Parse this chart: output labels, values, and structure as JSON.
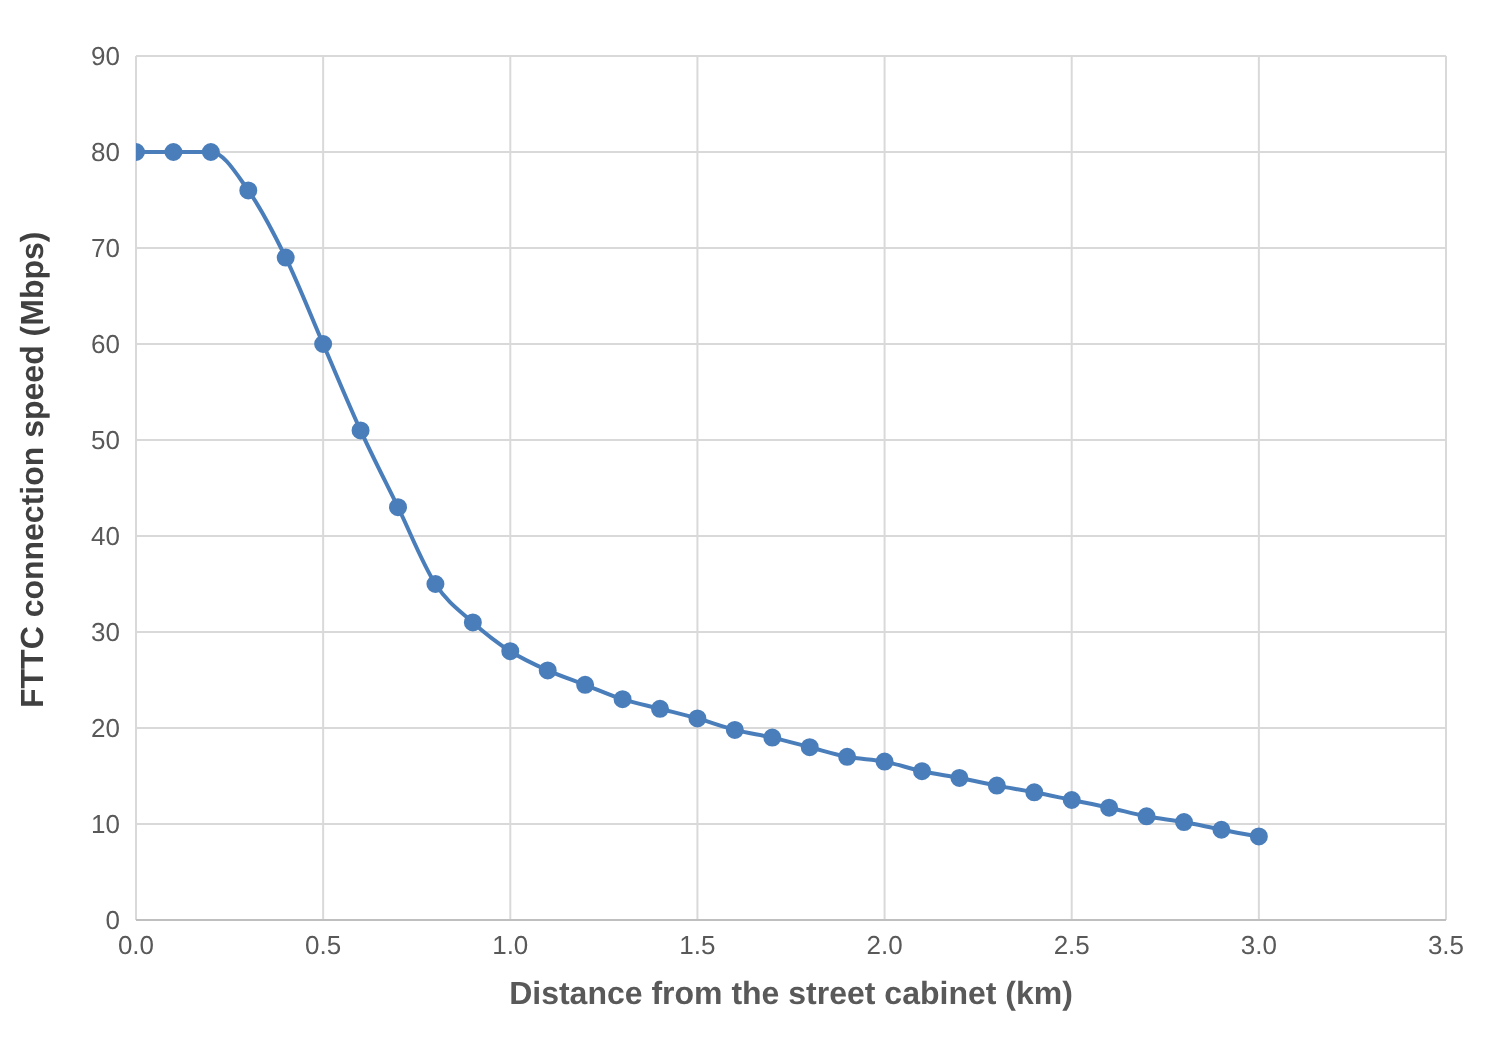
{
  "chart_data": {
    "type": "line",
    "xlabel": "Distance from the street cabinet (km)",
    "ylabel": "FTTC connection speed (Mbps)",
    "x": [
      0,
      0.1,
      0.2,
      0.3,
      0.4,
      0.5,
      0.6,
      0.7,
      0.8,
      0.9,
      1.0,
      1.1,
      1.2,
      1.3,
      1.4,
      1.5,
      1.6,
      1.7,
      1.8,
      1.9,
      2.0,
      2.1,
      2.2,
      2.3,
      2.4,
      2.5,
      2.6,
      2.7,
      2.8,
      2.9,
      3.0
    ],
    "series": [
      {
        "color": "#4a7ebb",
        "values": [
          80,
          80,
          80,
          76,
          69,
          60,
          51,
          43,
          35,
          31,
          28,
          26,
          24.5,
          23,
          22,
          21,
          19.8,
          19,
          18,
          17,
          16.5,
          15.5,
          14.8,
          14,
          13.3,
          12.5,
          11.7,
          10.8,
          10.2,
          9.4,
          8.7
        ]
      }
    ],
    "xlim": [
      0,
      3.5
    ],
    "xticks": [
      {
        "value": 0,
        "label": "0.0"
      },
      {
        "value": 0.5,
        "label": "0.5"
      },
      {
        "value": 1,
        "label": "1.0"
      },
      {
        "value": 1.5,
        "label": "1.5"
      },
      {
        "value": 2,
        "label": "2.0"
      },
      {
        "value": 2.5,
        "label": "2.5"
      },
      {
        "value": 3,
        "label": "3.0"
      },
      {
        "value": 3.5,
        "label": "3.5"
      }
    ],
    "ylim": [
      0,
      90
    ],
    "yticks": [
      0,
      10,
      20,
      30,
      40,
      50,
      60,
      70,
      80,
      90
    ],
    "grid": true,
    "marker": "circle",
    "line_style": "solid",
    "legend": false
  }
}
